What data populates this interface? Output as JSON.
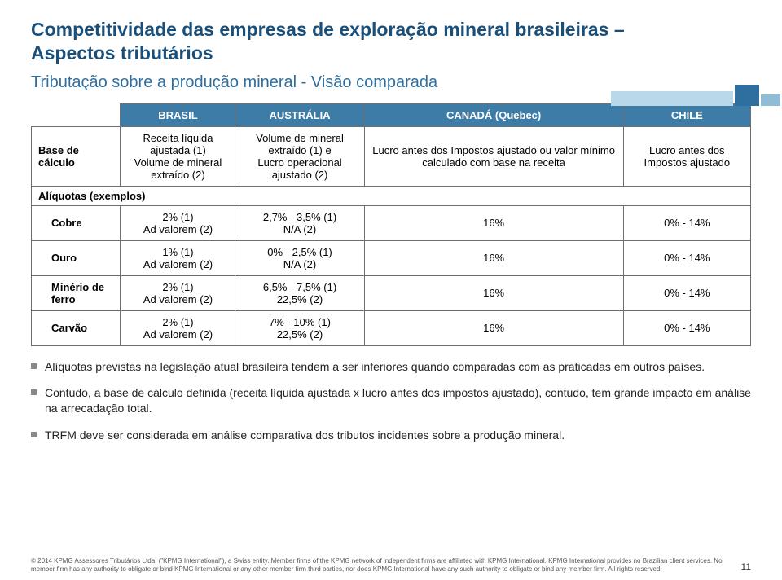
{
  "title_color": "#1a4f7a",
  "subtitle_color": "#2f6f9f",
  "header_bg": "#3e7ca8",
  "title_line1": "Competitividade das empresas de exploração mineral brasileiras –",
  "title_line2": "Aspectos tributários",
  "subtitle": "Tributação sobre a produção mineral  - Visão comparada",
  "table": {
    "headers": [
      "",
      "BRASIL",
      "AUSTRÁLIA",
      "CANADÁ (Quebec)",
      "CHILE"
    ],
    "base_row": {
      "label": "Base de cálculo",
      "cells": [
        "Receita líquida ajustada (1)\nVolume de mineral extraído (2)",
        "Volume de mineral extraído (1) e\nLucro operacional ajustado (2)",
        "Lucro antes dos Impostos ajustado ou valor mínimo calculado com base na receita",
        "Lucro antes dos Impostos ajustado"
      ]
    },
    "exemplos_label": "Alíquotas (exemplos)",
    "rows": [
      {
        "label": "Cobre",
        "c1": "2% (1)\nAd valorem (2)",
        "c2": "2,7% - 3,5% (1)\nN/A (2)",
        "c3": "16%",
        "c4": "0% - 14%"
      },
      {
        "label": "Ouro",
        "c1": "1% (1)\nAd valorem (2)",
        "c2": "0% - 2,5% (1)\nN/A (2)",
        "c3": "16%",
        "c4": "0% - 14%"
      },
      {
        "label": "Minério de ferro",
        "c1": "2% (1)\nAd valorem (2)",
        "c2": "6,5% - 7,5% (1)\n22,5% (2)",
        "c3": "16%",
        "c4": "0% - 14%"
      },
      {
        "label": "Carvão",
        "c1": "2% (1)\nAd valorem (2)",
        "c2": "7% - 10% (1)\n22,5% (2)",
        "c3": "16%",
        "c4": "0% - 14%"
      }
    ]
  },
  "bullets": [
    "Alíquotas previstas na legislação atual brasileira tendem a ser inferiores quando comparadas com as praticadas em outros países.",
    "Contudo, a base de cálculo definida (receita líquida ajustada x lucro antes dos impostos ajustado), contudo, tem grande impacto em análise na arrecadação total.",
    "TRFM deve ser considerada em análise comparativa dos tributos incidentes sobre a produção mineral."
  ],
  "footer": "© 2014 KPMG Assessores Tributários Ltda. (\"KPMG International\"), a Swiss entity. Member firms of the KPMG network of independent firms are affiliated with KPMG International. KPMG International provides no Brazilian client services. No member firm has any authority to obligate or bind KPMG International or any other member firm third parties, nor does KPMG International have any such authority to obligate or bind any member firm. All rights reserved.",
  "page_number": "11"
}
